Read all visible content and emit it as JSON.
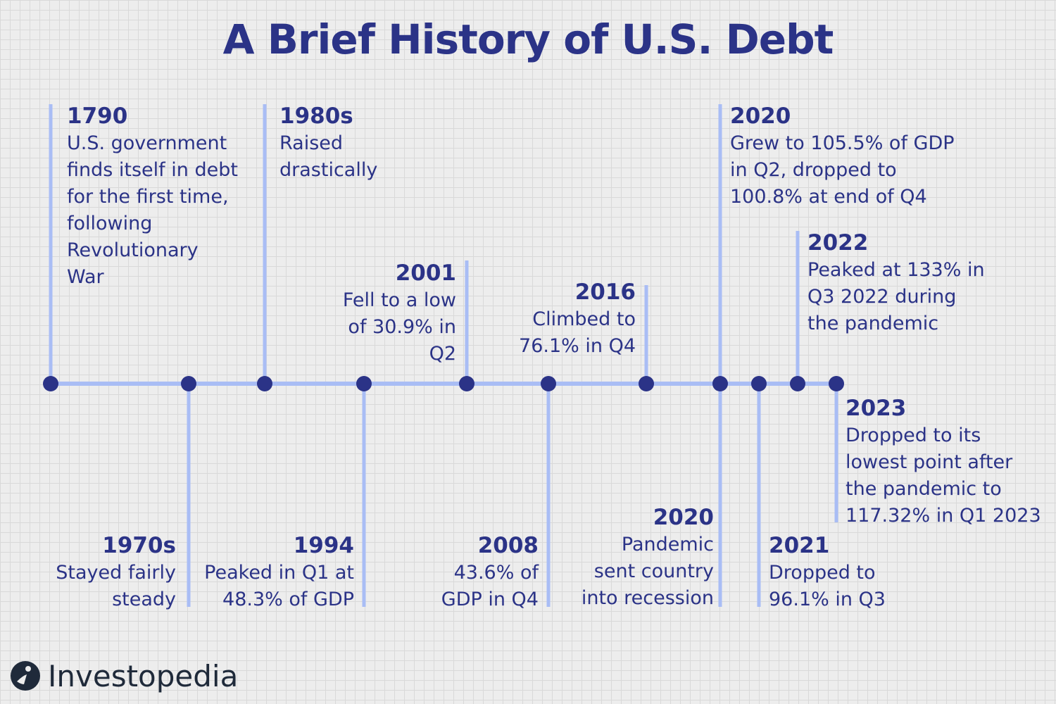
{
  "title": "A Brief History of U.S. Debt",
  "brand": "Investopedia",
  "colors": {
    "text": "#2b3387",
    "line": "#a9bdf5",
    "dot": "#2b3387"
  },
  "events": [
    {
      "year": "1790",
      "desc": "U.S. government\nfinds itself in debt\nfor the first time,\nfollowing\nRevolutionary\nWar"
    },
    {
      "year": "1970s",
      "desc": "Stayed fairly\nsteady"
    },
    {
      "year": "1980s",
      "desc": "Raised\ndrastically"
    },
    {
      "year": "1994",
      "desc": "Peaked in Q1 at\n48.3% of GDP"
    },
    {
      "year": "2001",
      "desc": "Fell to a low\nof 30.9% in\nQ2"
    },
    {
      "year": "2008",
      "desc": "43.6% of\nGDP in Q4"
    },
    {
      "year": "2016",
      "desc": "Climbed to\n76.1% in Q4"
    },
    {
      "year": "2020",
      "desc": "Pandemic\nsent country\ninto recession"
    },
    {
      "year": "2020",
      "desc": "Grew to 105.5% of GDP\nin Q2, dropped to\n100.8% at end of Q4"
    },
    {
      "year": "2021",
      "desc": "Dropped to\n96.1% in Q3"
    },
    {
      "year": "2022",
      "desc": "Peaked at 133% in\nQ3 2022 during\nthe pandemic"
    },
    {
      "year": "2023",
      "desc": "Dropped to its\nlowest point after\nthe pandemic to\n117.32% in Q1 2023"
    }
  ]
}
